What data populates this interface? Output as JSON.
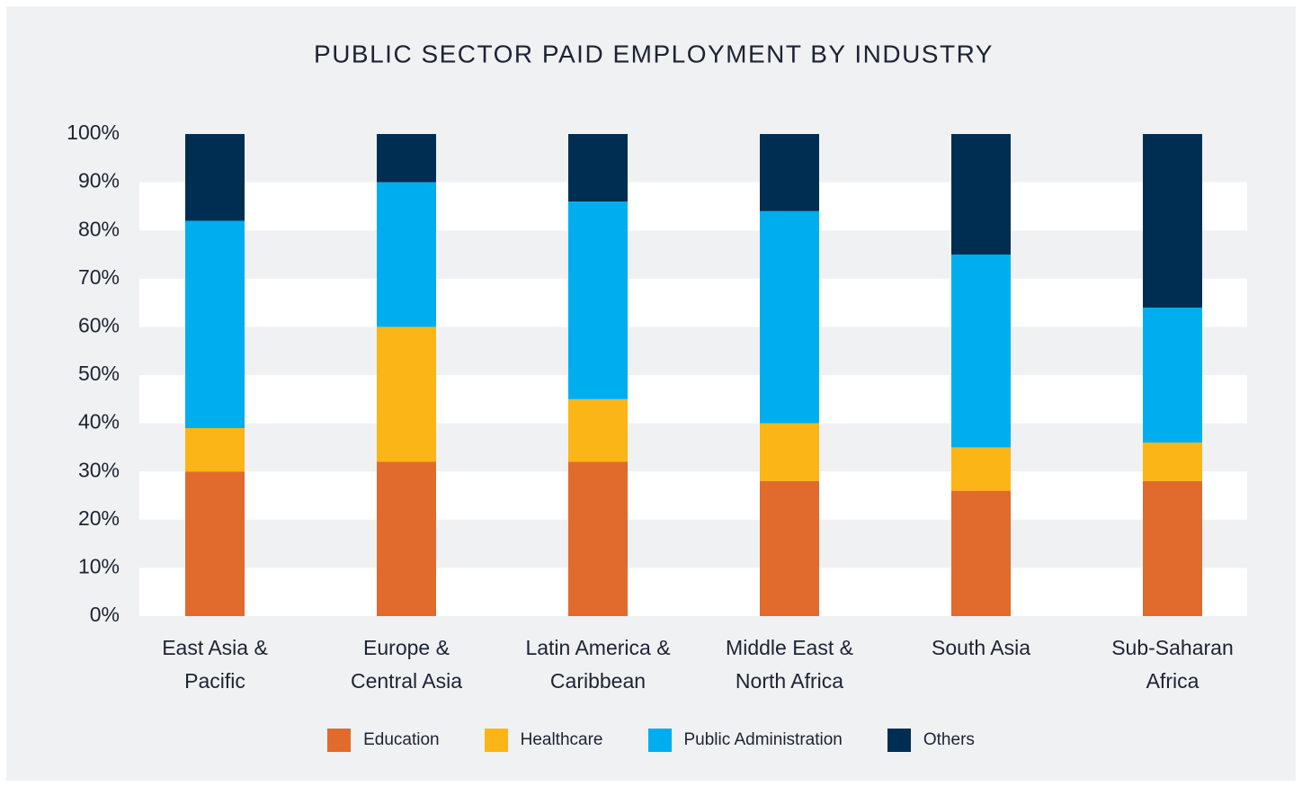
{
  "chart_data": {
    "type": "stacked_bar",
    "title": "PUBLIC SECTOR PAID EMPLOYMENT BY INDUSTRY",
    "categories": [
      "East Asia & Pacific",
      "Europe & Central Asia",
      "Latin America & Caribbean",
      "Middle East & North Africa",
      "South Asia",
      "Sub-Saharan Africa"
    ],
    "series": [
      {
        "name": "Education",
        "color": "#e06b2d",
        "values": [
          30,
          32,
          32,
          28,
          26,
          28
        ]
      },
      {
        "name": "Healthcare",
        "color": "#fbb516",
        "values": [
          9,
          28,
          13,
          12,
          9,
          8
        ]
      },
      {
        "name": "Public Administration",
        "color": "#00aeef",
        "values": [
          43,
          30,
          41,
          44,
          40,
          28
        ]
      },
      {
        "name": "Others",
        "color": "#002e52",
        "values": [
          18,
          10,
          14,
          16,
          25,
          36
        ]
      }
    ],
    "ylim": [
      0,
      100
    ],
    "yticks": [
      {
        "value": 0,
        "label": "0%"
      },
      {
        "value": 10,
        "label": "10%"
      },
      {
        "value": 20,
        "label": "20%"
      },
      {
        "value": 30,
        "label": "30%"
      },
      {
        "value": 40,
        "label": "40%"
      },
      {
        "value": 50,
        "label": "50%"
      },
      {
        "value": 60,
        "label": "60%"
      },
      {
        "value": 70,
        "label": "70%"
      },
      {
        "value": 80,
        "label": "80%"
      },
      {
        "value": 90,
        "label": "90%"
      },
      {
        "value": 100,
        "label": "100%"
      }
    ],
    "banded_grid": true,
    "legend": "bottom"
  }
}
